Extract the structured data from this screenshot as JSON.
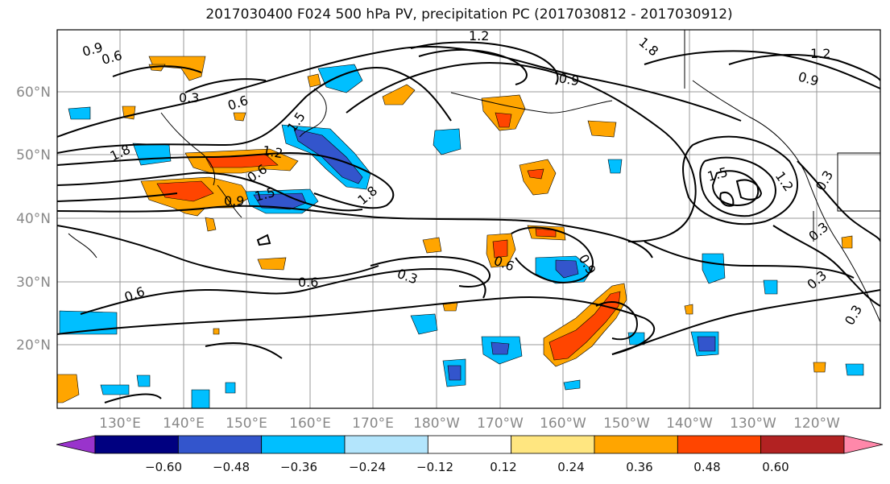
{
  "title": "2017030400 F024 500 hPa PV, precipitation PC (2017030812 - 2017030912)",
  "map": {
    "lat_labels": [
      "60°N",
      "50°N",
      "40°N",
      "30°N",
      "20°N"
    ],
    "lon_labels": [
      "130°E",
      "140°E",
      "150°E",
      "160°E",
      "170°E",
      "180°W",
      "170°W",
      "160°W",
      "150°W",
      "140°W",
      "130°W",
      "120°W"
    ],
    "contour_labels": [
      "0.9",
      "0.6",
      "0.3",
      "0.6",
      "1.5",
      "1.8",
      "1.2",
      "0.9",
      "0.6",
      "1.5",
      "1.8",
      "1.2",
      "0.9",
      "1.5",
      "1.2",
      "0.9",
      "0.3",
      "0.3",
      "0.3",
      "0.6",
      "0.3",
      "0.6",
      "0.9",
      "0.6",
      "0.3",
      "1.8",
      "1.2"
    ]
  },
  "colorbar": {
    "ticks": [
      "−0.60",
      "−0.48",
      "−0.36",
      "−0.24",
      "−0.12",
      "0.12",
      "0.24",
      "0.36",
      "0.48",
      "0.60"
    ],
    "colors": [
      "#9933cc",
      "#000080",
      "#3355cc",
      "#00bfff",
      "#b3e5fc",
      "#ffffff",
      "#ffe680",
      "#ffa500",
      "#ff4500",
      "#b22222",
      "#ff88aa"
    ]
  }
}
